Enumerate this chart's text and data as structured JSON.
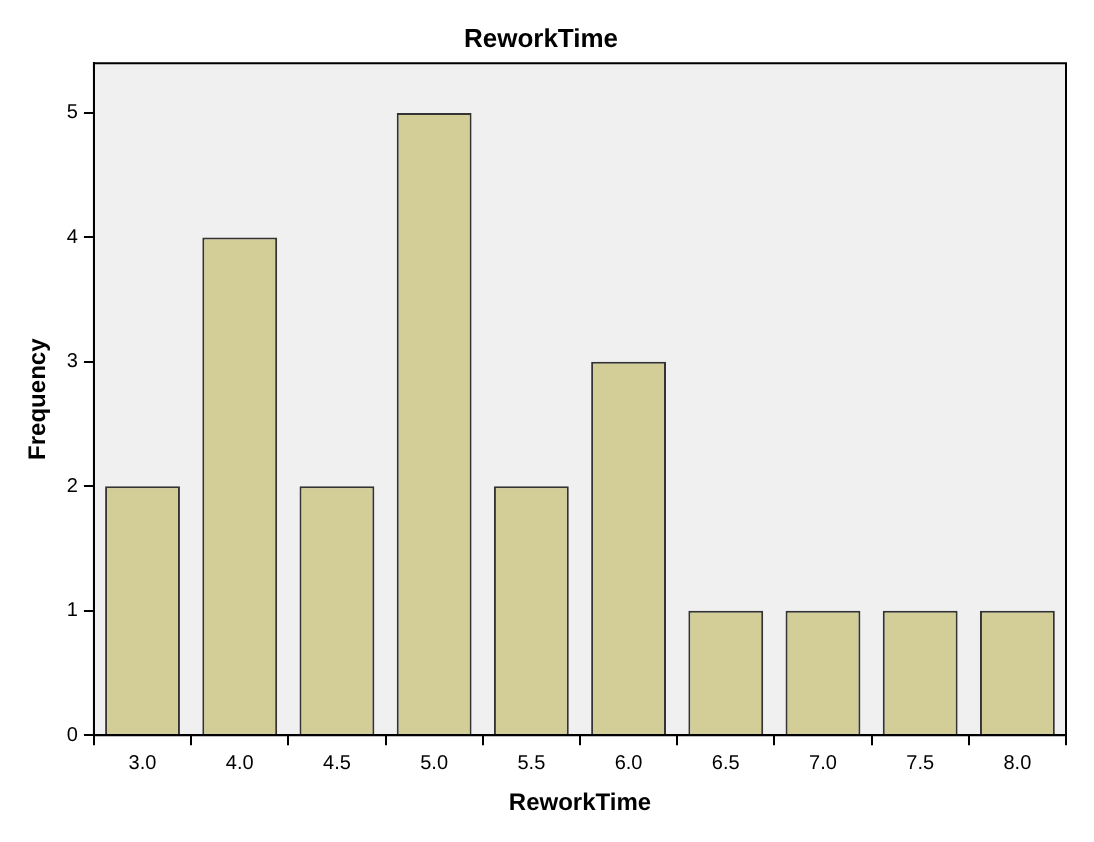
{
  "chart_data": {
    "type": "bar",
    "title": "ReworkTime",
    "xlabel": "ReworkTime",
    "ylabel": "Frequency",
    "categories": [
      "3.0",
      "4.0",
      "4.5",
      "5.0",
      "5.5",
      "6.0",
      "6.5",
      "7.0",
      "7.5",
      "8.0"
    ],
    "values": [
      2,
      4,
      2,
      5,
      2,
      3,
      1,
      1,
      1,
      1
    ],
    "color": "#d3ce97",
    "ylim": [
      0,
      5.4
    ],
    "yticks": [
      0,
      1,
      2,
      3,
      4,
      5
    ],
    "grid": false,
    "legend": false
  }
}
